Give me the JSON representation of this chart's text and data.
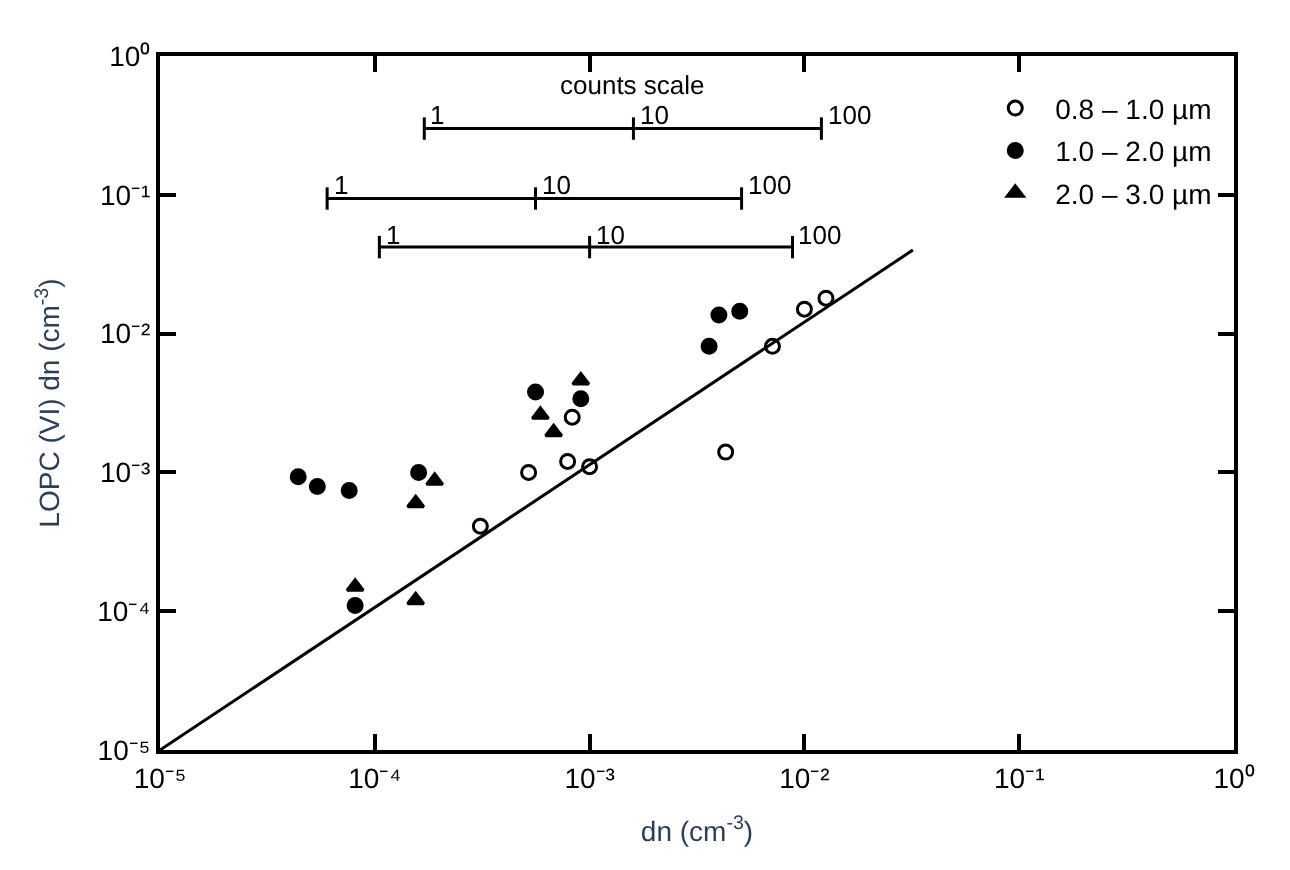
{
  "chart_data": {
    "type": "scatter",
    "xlabel": "dn (cm$^{-3}$)",
    "ylabel": "LOPC (VI) dn (cm$^{-3}$)",
    "annotations": [
      "counts scale",
      {
        "text": "1",
        "x": 0.00017,
        "y": 0.3
      },
      {
        "text": "10",
        "x": 0.0016,
        "y": 0.3
      },
      {
        "text": "100",
        "x": 0.012,
        "y": 0.3
      },
      {
        "text": "1",
        "x": 6e-05,
        "y": 0.094
      },
      {
        "text": "10",
        "x": 0.00056,
        "y": 0.094
      },
      {
        "text": "100",
        "x": 0.0051,
        "y": 0.094
      },
      {
        "text": "1",
        "x": 0.000105,
        "y": 0.042
      },
      {
        "text": "10",
        "x": 0.001,
        "y": 0.042
      },
      {
        "text": "100",
        "x": 0.0088,
        "y": 0.042
      }
    ],
    "xlim": [
      1e-05,
      1
    ],
    "ylim": [
      1e-05,
      1
    ],
    "xticks": [
      {
        "value": 1e-05,
        "label": "10⁻⁵"
      },
      {
        "value": 0.0001,
        "label": "10⁻⁴"
      },
      {
        "value": 0.001,
        "label": "10⁻³"
      },
      {
        "value": 0.01,
        "label": "10⁻²"
      },
      {
        "value": 0.1,
        "label": "10⁻¹"
      },
      {
        "value": 1,
        "label": "10⁰"
      }
    ],
    "yticks": [
      {
        "value": 1e-05,
        "label": "10⁻⁵"
      },
      {
        "value": 0.0001,
        "label": "10⁻⁴"
      },
      {
        "value": 0.001,
        "label": "10⁻³"
      },
      {
        "value": 0.01,
        "label": "10⁻²"
      },
      {
        "value": 0.1,
        "label": "10⁻¹"
      },
      {
        "value": 1,
        "label": "10⁰"
      }
    ],
    "log": "xy",
    "legend": "top right",
    "series": [
      {
        "name": "0.8 – 1.0 µm",
        "marker": "circle",
        "color": "#ffffff",
        "x": [
          0.00031,
          0.00052,
          0.00079,
          0.00083,
          0.001,
          0.0043,
          0.0071,
          0.01,
          0.0126
        ],
        "values": [
          0.00041,
          0.001,
          0.0012,
          0.0025,
          0.0011,
          0.0014,
          0.0081,
          0.015,
          0.018
        ]
      },
      {
        "name": "1.0 – 2.0 µm",
        "marker": "circle",
        "color": "#000000",
        "x": [
          4.4e-05,
          5.4e-05,
          7.6e-05,
          8.1e-05,
          0.00016,
          0.00056,
          0.00091,
          0.0036,
          0.004,
          0.005
        ],
        "values": [
          0.00093,
          0.00079,
          0.00074,
          0.00011,
          0.001,
          0.0038,
          0.0034,
          0.0081,
          0.0136,
          0.0145
        ]
      },
      {
        "name": "2.0 – 3.0 µm",
        "marker": "triangle",
        "color": "#000000",
        "x": [
          8.1e-05,
          0.000155,
          0.00019,
          0.000155,
          0.00059,
          0.00068,
          0.00091
        ],
        "values": [
          0.00015,
          0.0006,
          0.00087,
          0.00012,
          0.0026,
          0.00195,
          0.0046
        ]
      },
      {
        "type": "line",
        "marker": "none",
        "line_style": "solid",
        "color": "#000000",
        "x": [
          1e-05,
          0.032
        ],
        "values": [
          1e-05,
          0.04
        ]
      },
      {
        "type": "line",
        "marker": "none",
        "line_style": "solid",
        "color": "#000000",
        "x": [
          0.00017,
          0.0016,
          0.012
        ],
        "values": [
          0.3,
          0.3,
          0.3
        ]
      },
      {
        "type": "line",
        "marker": "none",
        "line_style": "solid",
        "color": "#000000",
        "x": [
          6e-05,
          0.00056,
          0.0051
        ],
        "values": [
          0.094,
          0.094,
          0.094
        ]
      },
      {
        "type": "line",
        "marker": "none",
        "line_style": "solid",
        "color": "#000000",
        "x": [
          0.000105,
          0.001,
          0.0088
        ],
        "values": [
          0.042,
          0.042,
          0.042
        ]
      }
    ]
  }
}
